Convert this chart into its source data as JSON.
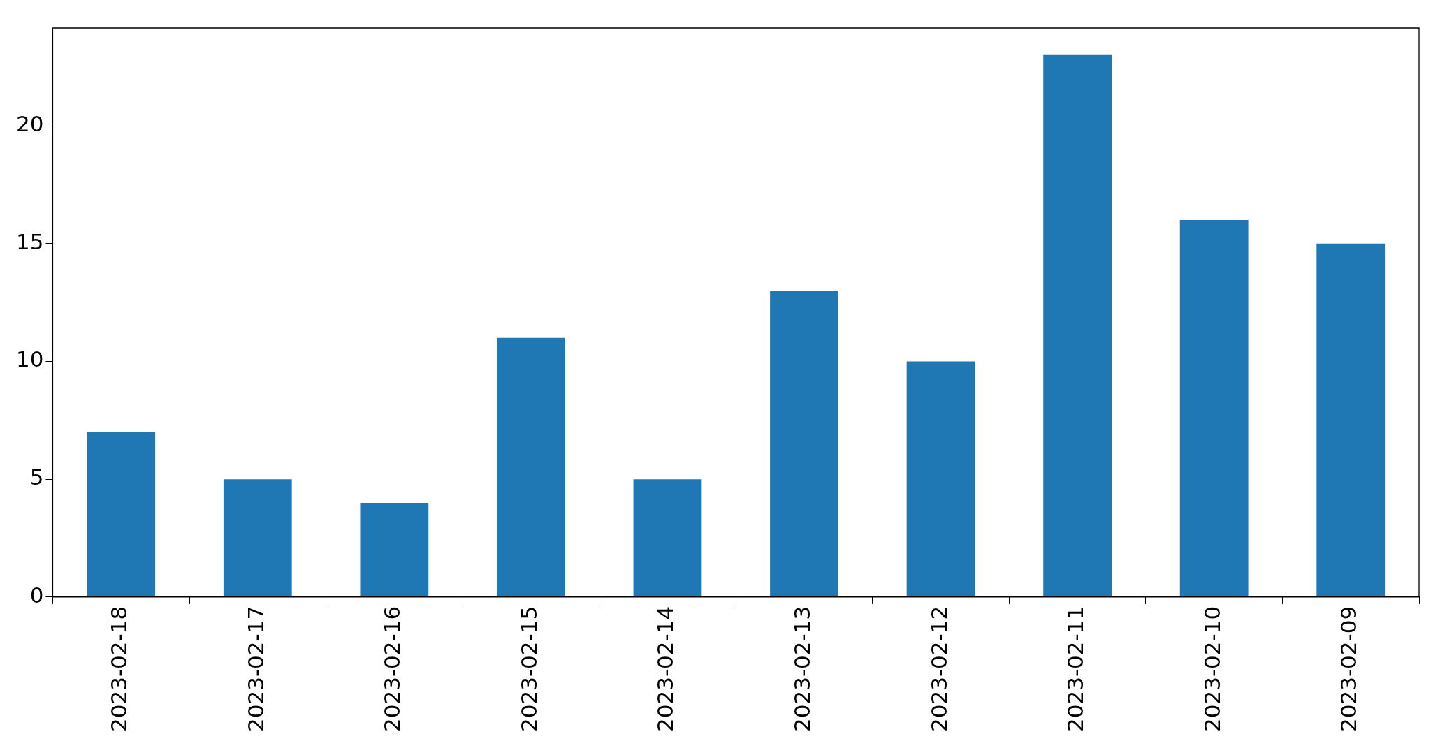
{
  "chart_data": {
    "type": "bar",
    "categories": [
      "2023-02-18",
      "2023-02-17",
      "2023-02-16",
      "2023-02-15",
      "2023-02-14",
      "2023-02-13",
      "2023-02-12",
      "2023-02-11",
      "2023-02-10",
      "2023-02-09"
    ],
    "values": [
      7,
      5,
      4,
      11,
      5,
      13,
      10,
      23,
      16,
      15
    ],
    "color": "#1f77b4",
    "ylim": [
      0,
      24.15
    ],
    "yticks": [
      0,
      5,
      10,
      15,
      20
    ],
    "grid": false,
    "legend": false
  }
}
